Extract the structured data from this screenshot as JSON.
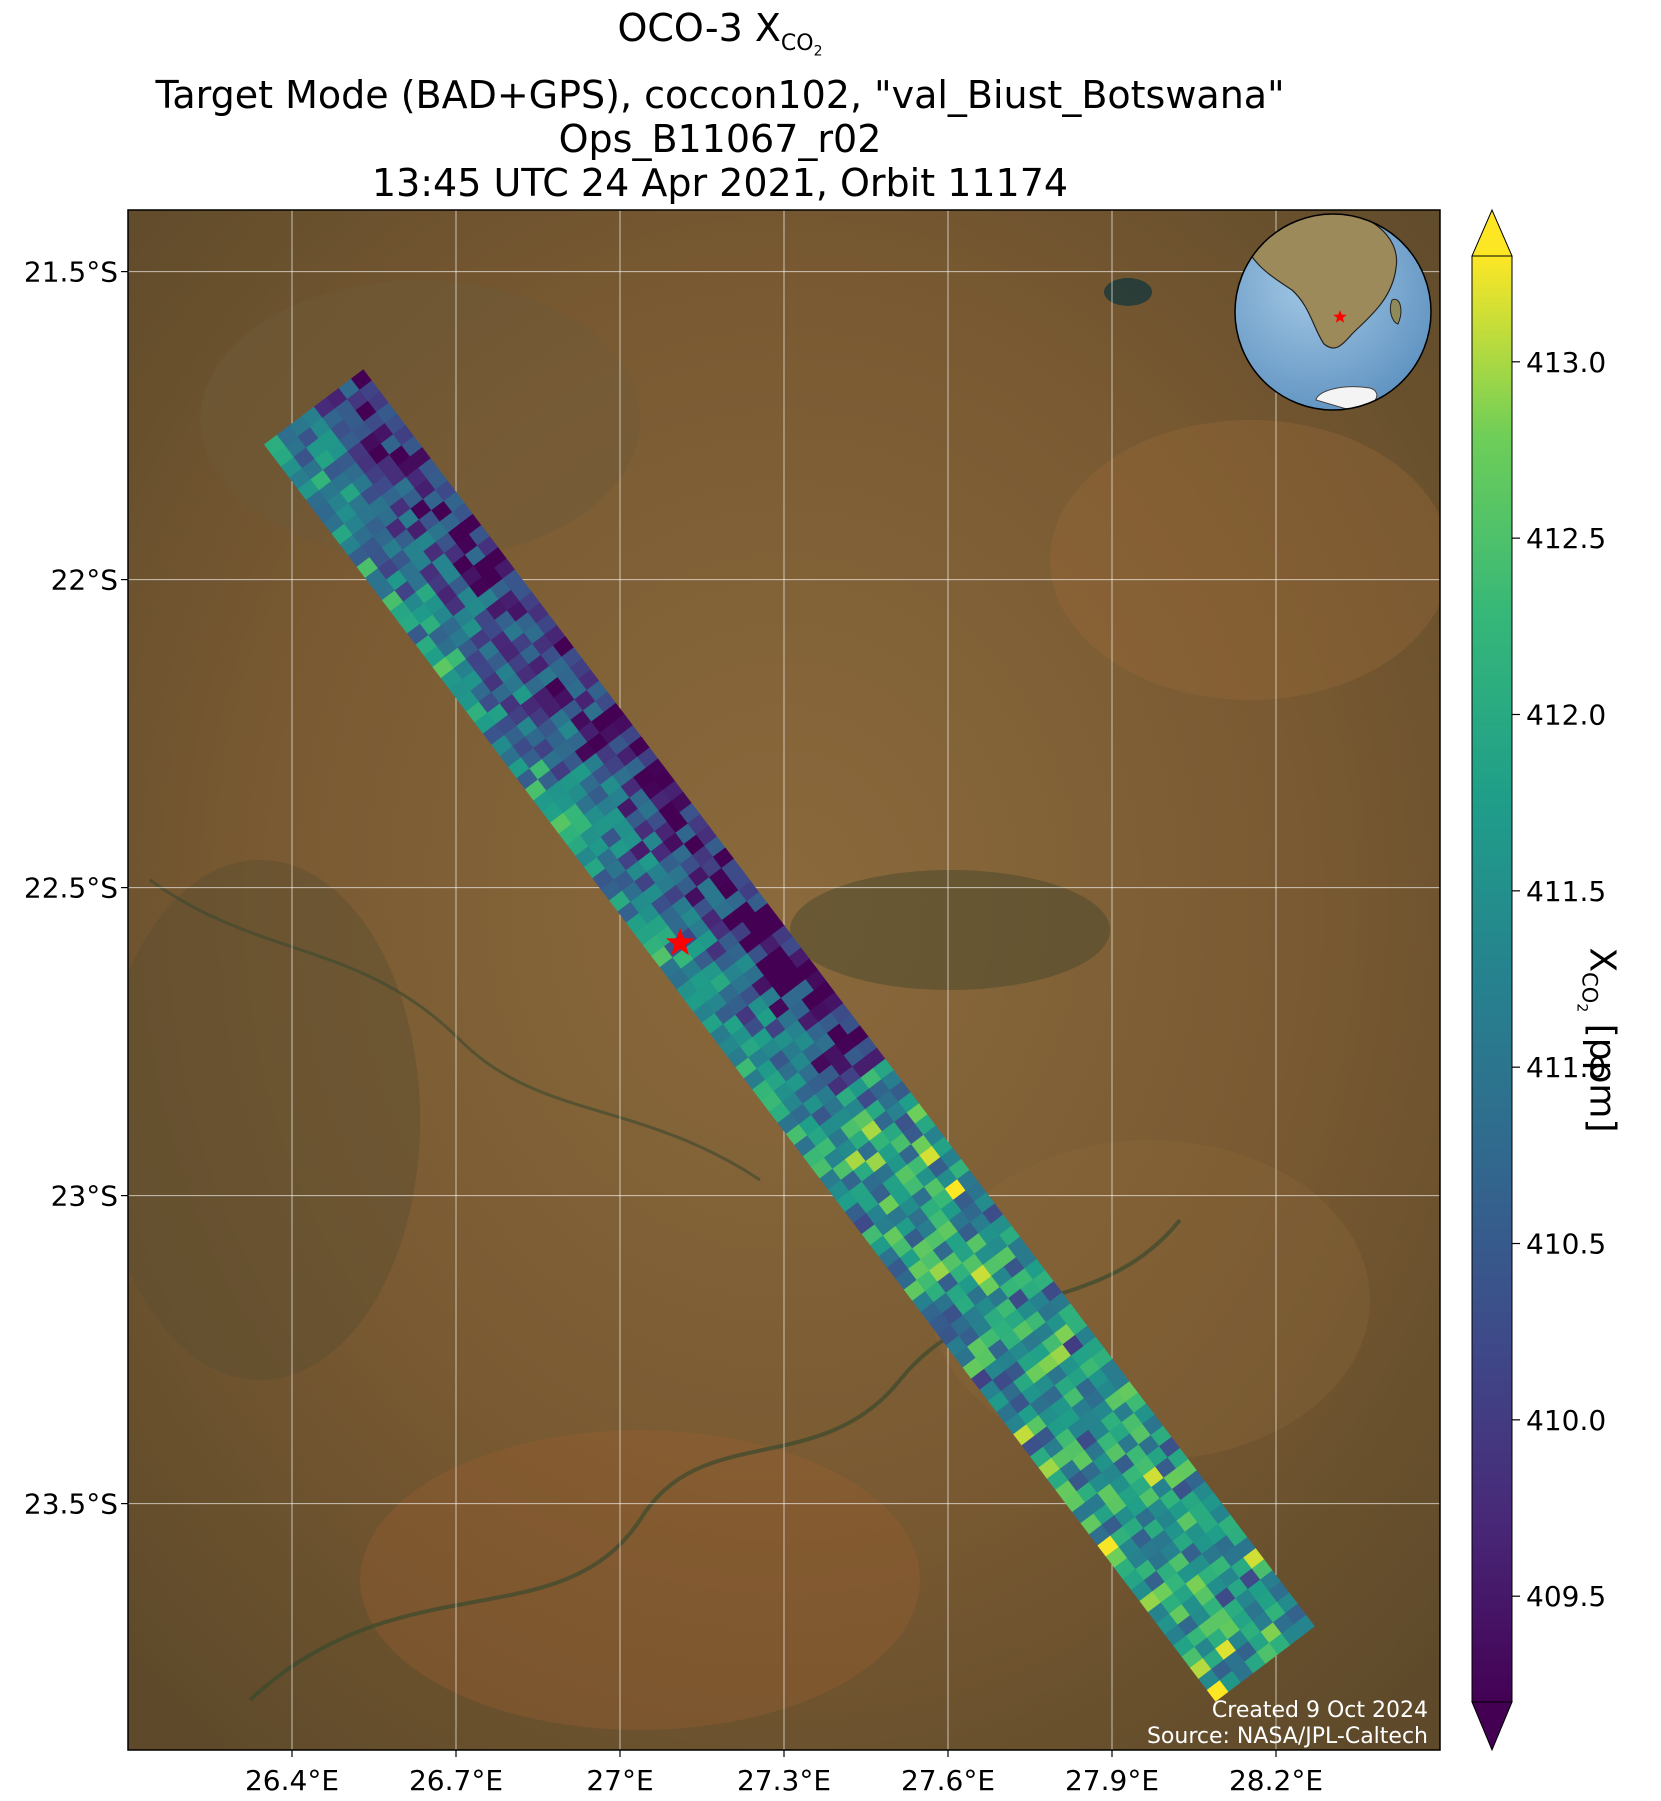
{
  "title": {
    "line1_prefix": "OCO-3 X",
    "line1_sub": "CO",
    "line1_subsub": "2",
    "line2": "Target Mode (BAD+GPS), coccon102, \"val_Biust_Botswana\"",
    "line3": "Ops_B11067_r02",
    "line4": "13:45 UTC 24 Apr 2021, Orbit 11174"
  },
  "map": {
    "lon_range": [
      26.1,
      28.5
    ],
    "lat_range": [
      -23.9,
      -21.4
    ],
    "lon_ticks": [
      {
        "value": 26.4,
        "label": "26.4°E"
      },
      {
        "value": 26.7,
        "label": "26.7°E"
      },
      {
        "value": 27.0,
        "label": "27°E"
      },
      {
        "value": 27.3,
        "label": "27.3°E"
      },
      {
        "value": 27.6,
        "label": "27.6°E"
      },
      {
        "value": 27.9,
        "label": "27.9°E"
      },
      {
        "value": 28.2,
        "label": "28.2°E"
      }
    ],
    "lat_ticks": [
      {
        "value": -21.5,
        "label": "21.5°S"
      },
      {
        "value": -22.0,
        "label": "22°S"
      },
      {
        "value": -22.5,
        "label": "22.5°S"
      },
      {
        "value": -23.0,
        "label": "23°S"
      },
      {
        "value": -23.5,
        "label": "23.5°S"
      }
    ],
    "grid": true,
    "background": "satellite imagery",
    "target": {
      "lon": 27.11,
      "lat": -22.59,
      "marker": "star",
      "color": "#ff0000"
    },
    "swath": {
      "start": {
        "lon": 26.44,
        "lat": -21.72
      },
      "end": {
        "lon": 28.18,
        "lat": -23.76
      },
      "cross_track_footprints": 8
    },
    "inset_globe": {
      "location": "top-right",
      "center": "southern Africa",
      "marker": "star",
      "marker_color": "#ff0000"
    },
    "credits": [
      "Created 9 Oct 2024",
      "Source: NASA/JPL-Caltech"
    ]
  },
  "colorbar": {
    "label_prefix": "X",
    "label_sub": "CO",
    "label_subsub": "2",
    "label_suffix": " [ppm]",
    "colormap": "viridis",
    "range": [
      409.2,
      413.3
    ],
    "extend": "both",
    "ticks": [
      {
        "value": 409.5,
        "label": "409.5"
      },
      {
        "value": 410.0,
        "label": "410.0"
      },
      {
        "value": 410.5,
        "label": "410.5"
      },
      {
        "value": 411.0,
        "label": "411.0"
      },
      {
        "value": 411.5,
        "label": "411.5"
      },
      {
        "value": 412.0,
        "label": "412.0"
      },
      {
        "value": 412.5,
        "label": "412.5"
      },
      {
        "value": 413.0,
        "label": "413.0"
      }
    ]
  },
  "colors": {
    "viridis_low": "#440154",
    "viridis_mid": "#21918c",
    "viridis_high": "#fde725",
    "land": "#7a5a32",
    "ocean": "#6a9fc9"
  }
}
